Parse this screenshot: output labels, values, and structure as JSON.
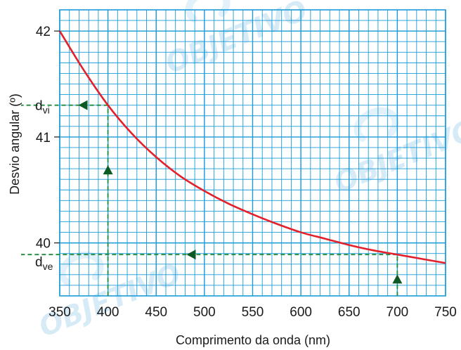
{
  "chart_data": {
    "type": "line",
    "xlabel": "Comprimento da onda (nm)",
    "ylabel": "Desvio angular (º)",
    "xlim": [
      350,
      750
    ],
    "ylim": [
      39.5,
      42.2
    ],
    "x_ticks": [
      350,
      400,
      450,
      500,
      550,
      600,
      650,
      700,
      750
    ],
    "y_ticks": [
      40,
      41,
      42
    ],
    "grid": true,
    "x_minor_step": 10,
    "y_minor_step": 0.1,
    "series": [
      {
        "color": "#e3202b",
        "x": [
          350,
          375,
          400,
          425,
          450,
          475,
          500,
          525,
          550,
          575,
          600,
          625,
          650,
          675,
          700,
          725,
          750
        ],
        "y": [
          42.0,
          41.63,
          41.3,
          41.03,
          40.81,
          40.63,
          40.49,
          40.37,
          40.27,
          40.18,
          40.1,
          40.04,
          39.98,
          39.93,
          39.89,
          39.85,
          39.81
        ]
      }
    ],
    "guides": {
      "color": "#1e8a3a",
      "violet": {
        "x": 400,
        "y": 41.3
      },
      "red": {
        "x": 700,
        "y": 39.89
      }
    },
    "annotations": [
      {
        "id": "violet",
        "main": "d",
        "sub": "vi",
        "y": 41.3
      },
      {
        "id": "red",
        "main": "d",
        "sub": "ve",
        "y": 39.89
      }
    ],
    "grid_color": "#1a9bd7",
    "axis_color": "#1a9bd7"
  },
  "watermark": {
    "text": "OBJETIVO",
    "color": "#b8dcf2"
  }
}
